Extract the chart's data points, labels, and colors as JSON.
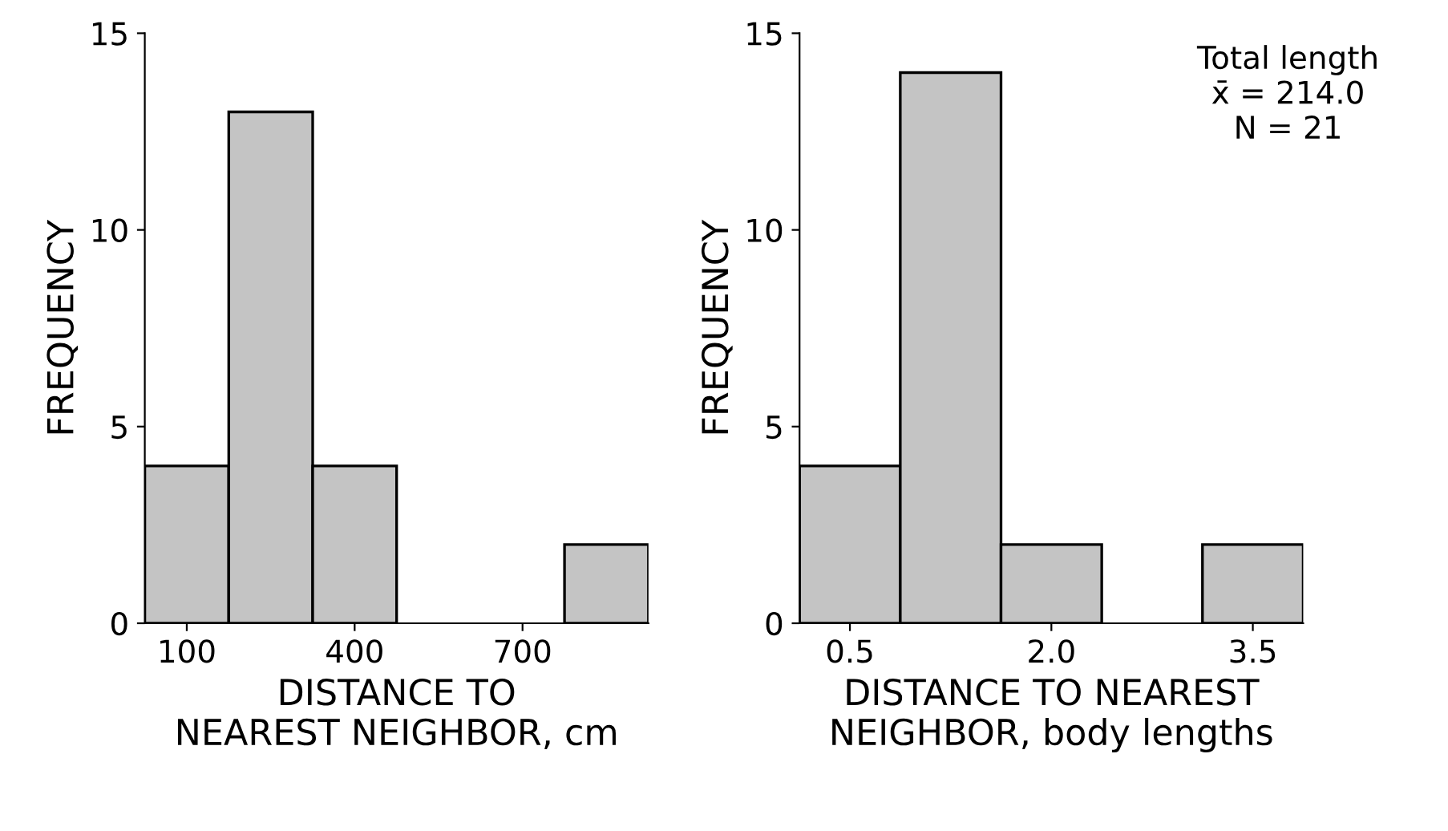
{
  "chart_data": [
    {
      "type": "histogram",
      "ylabel": "FREQUENCY",
      "xlabel": "DISTANCE TO\nNEAREST NEIGHBOR, cm",
      "bins": [
        25,
        175,
        325,
        475,
        625,
        775,
        925
      ],
      "values": [
        4,
        13,
        4,
        0,
        0,
        2
      ],
      "color": "#c4c4c4",
      "xlim": [
        25,
        925
      ],
      "xticks": [
        100,
        400,
        700
      ],
      "ylim": [
        0,
        15
      ],
      "yticks": [
        0,
        5,
        10,
        15
      ],
      "grid": false
    },
    {
      "type": "histogram",
      "ylabel": "FREQUENCY",
      "xlabel": "DISTANCE TO NEAREST\nNEIGHBOR, body lengths",
      "bins": [
        0.125,
        0.875,
        1.625,
        2.375,
        3.125,
        3.875
      ],
      "values": [
        4,
        14,
        2,
        0,
        2
      ],
      "color": "#c4c4c4",
      "xlim": [
        0.125,
        3.875
      ],
      "xticks": [
        {
          "value": 0.5,
          "label": "0.5"
        },
        {
          "value": 2.0,
          "label": "2.0"
        },
        {
          "value": 3.5,
          "label": "3.5"
        }
      ],
      "ylim": [
        0,
        15
      ],
      "yticks": [
        0,
        5,
        10,
        15
      ],
      "grid": false,
      "annotations": [
        "Total length\nx̄ = 214.0\nN = 21"
      ]
    }
  ]
}
